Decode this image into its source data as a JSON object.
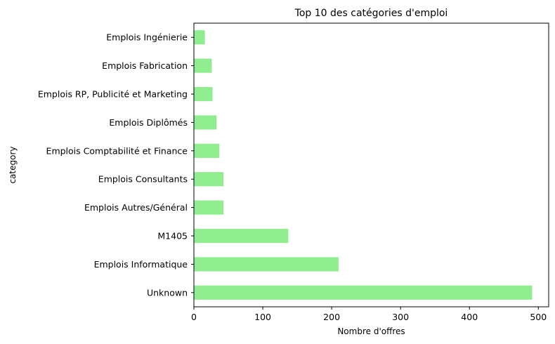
{
  "chart_data": {
    "type": "bar",
    "orientation": "horizontal",
    "title": "Top 10 des catégories d'emploi",
    "xlabel": "Nombre d'offres",
    "ylabel": "category",
    "categories": [
      "Unknown",
      "Emplois Informatique",
      "M1405",
      "Emplois Autres/Général",
      "Emplois Consultants",
      "Emplois Comptabilité et Finance",
      "Emplois Diplômés",
      "Emplois RP, Publicité et Marketing",
      "Emplois Fabrication",
      "Emplois Ingénierie"
    ],
    "values": [
      491,
      210,
      137,
      43,
      43,
      37,
      33,
      27,
      26,
      16
    ],
    "xlim": [
      0,
      515
    ],
    "xticks": [
      0,
      100,
      200,
      300,
      400,
      500
    ],
    "grid": false,
    "bar_color": "#90ee90"
  }
}
